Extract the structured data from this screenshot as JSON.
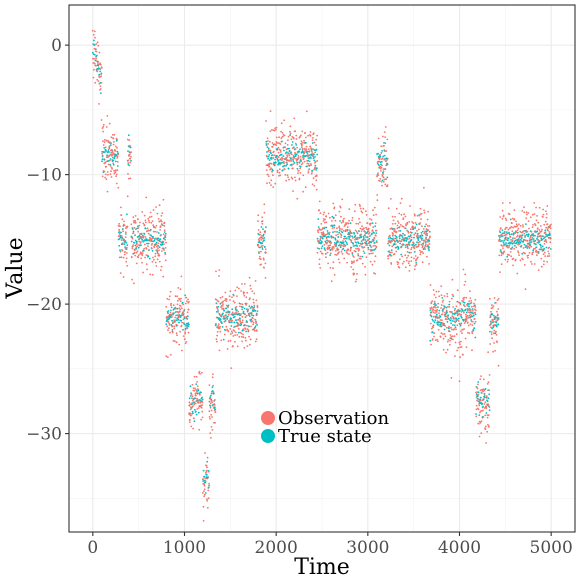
{
  "chart_data": {
    "type": "scatter",
    "title": "",
    "xlabel": "Time",
    "ylabel": "Value",
    "xlim": [
      -260,
      5260
    ],
    "ylim": [
      -37.6,
      3.1
    ],
    "xticks": [
      0,
      1000,
      2000,
      3000,
      4000,
      5000
    ],
    "xtick_labels": [
      "0",
      "1000",
      "2000",
      "3000",
      "4000",
      "5000"
    ],
    "yticks": [
      0,
      -10,
      -20,
      -30
    ],
    "ytick_labels": [
      "0",
      "−10",
      "−20",
      "−30"
    ],
    "grid": true,
    "legend_position": "inside-bottom-center",
    "series": [
      {
        "name": "Observation",
        "color": "#F8766D",
        "noise_sd": 1.2
      },
      {
        "name": "True state",
        "color": "#00BFC4",
        "noise_sd": 0.6
      }
    ],
    "regimes": [
      {
        "x": [
          0,
          100
        ],
        "y": [
          0,
          -3
        ]
      },
      {
        "x": [
          100,
          280
        ],
        "y": -8.5
      },
      {
        "x": [
          280,
          380
        ],
        "y": -15
      },
      {
        "x": [
          380,
          420
        ],
        "y": -8.5
      },
      {
        "x": [
          420,
          800
        ],
        "y": -15
      },
      {
        "x": [
          800,
          1050
        ],
        "y": -21
      },
      {
        "x": [
          1050,
          1200
        ],
        "y": -27.5
      },
      {
        "x": [
          1200,
          1270
        ],
        "y": -33.5
      },
      {
        "x": [
          1270,
          1340
        ],
        "y": -27.5
      },
      {
        "x": [
          1340,
          1800
        ],
        "y": -21
      },
      {
        "x": [
          1800,
          1890
        ],
        "y": -15
      },
      {
        "x": [
          1890,
          2450
        ],
        "y": -8.5
      },
      {
        "x": [
          2450,
          3100
        ],
        "y": -15
      },
      {
        "x": [
          3100,
          3220
        ],
        "y": -9
      },
      {
        "x": [
          3220,
          3680
        ],
        "y": -15
      },
      {
        "x": [
          3680,
          4180
        ],
        "y": -21
      },
      {
        "x": [
          4180,
          4330
        ],
        "y": -27.5
      },
      {
        "x": [
          4330,
          4430
        ],
        "y": -21.5
      },
      {
        "x": [
          4430,
          5000
        ],
        "y": -15
      }
    ]
  }
}
